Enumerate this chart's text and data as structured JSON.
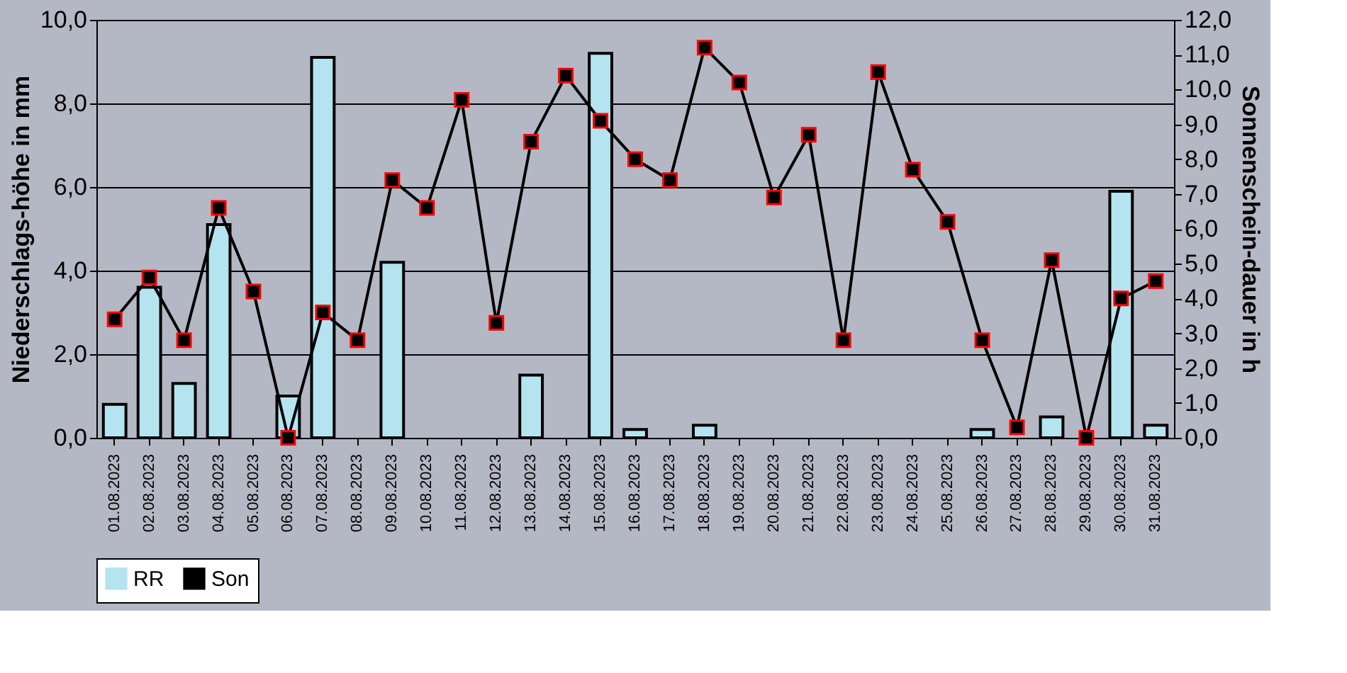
{
  "chart_data": {
    "type": "bar",
    "categories": [
      "01.08.2023",
      "02.08.2023",
      "03.08.2023",
      "04.08.2023",
      "05.08.2023",
      "06.08.2023",
      "07.08.2023",
      "08.08.2023",
      "09.08.2023",
      "10.08.2023",
      "11.08.2023",
      "12.08.2023",
      "13.08.2023",
      "14.08.2023",
      "15.08.2023",
      "16.08.2023",
      "17.08.2023",
      "18.08.2023",
      "19.08.2023",
      "20.08.2023",
      "21.08.2023",
      "22.08.2023",
      "23.08.2023",
      "24.08.2023",
      "25.08.2023",
      "26.08.2023",
      "27.08.2023",
      "28.08.2023",
      "29.08.2023",
      "30.08.2023",
      "31.08.2023"
    ],
    "series": [
      {
        "name": "RR",
        "color": "#b4e4f0",
        "values": [
          0.8,
          3.6,
          1.3,
          5.1,
          0,
          1.0,
          9.1,
          0,
          4.2,
          0,
          0,
          0,
          1.5,
          0,
          9.2,
          0.2,
          0,
          0.3,
          0,
          0,
          0,
          0,
          0,
          0,
          0,
          0.2,
          0,
          0.5,
          0,
          5.9,
          0.3
        ]
      },
      {
        "name": "Son",
        "type": "line",
        "axis": "y2",
        "color": "#000000",
        "marker": "square",
        "values": [
          3.4,
          4.6,
          2.8,
          6.6,
          4.2,
          0.0,
          3.6,
          2.8,
          7.4,
          6.6,
          9.7,
          3.3,
          8.5,
          10.4,
          9.1,
          8.0,
          7.4,
          11.2,
          10.2,
          6.9,
          8.7,
          2.8,
          10.5,
          7.7,
          6.2,
          2.8,
          0.3,
          5.1,
          0.0,
          4.0,
          4.5
        ]
      }
    ],
    "ylabel": "Niederschlags-höhe in mm",
    "y2label": "Sonnenschein-dauer in h",
    "ylim": [
      0,
      10
    ],
    "yticks": [
      {
        "value": 0,
        "label": "0,0"
      },
      {
        "value": 2,
        "label": "2,0"
      },
      {
        "value": 4,
        "label": "4,0"
      },
      {
        "value": 6,
        "label": "6,0"
      },
      {
        "value": 8,
        "label": "8,0"
      },
      {
        "value": 10,
        "label": "10,0"
      }
    ],
    "y2lim": [
      0,
      12
    ],
    "y2ticks": [
      {
        "value": 0,
        "label": "0,0"
      },
      {
        "value": 1,
        "label": "1,0"
      },
      {
        "value": 2,
        "label": "2,0"
      },
      {
        "value": 3,
        "label": "3,0"
      },
      {
        "value": 4,
        "label": "4,0"
      },
      {
        "value": 5,
        "label": "5,0"
      },
      {
        "value": 6,
        "label": "6,0"
      },
      {
        "value": 7,
        "label": "7,0"
      },
      {
        "value": 8,
        "label": "8,0"
      },
      {
        "value": 9,
        "label": "9,0"
      },
      {
        "value": 10,
        "label": "10,0"
      },
      {
        "value": 11,
        "label": "11,0"
      },
      {
        "value": 12,
        "label": "12,0"
      }
    ],
    "grid": "y",
    "legend": "bottom"
  }
}
